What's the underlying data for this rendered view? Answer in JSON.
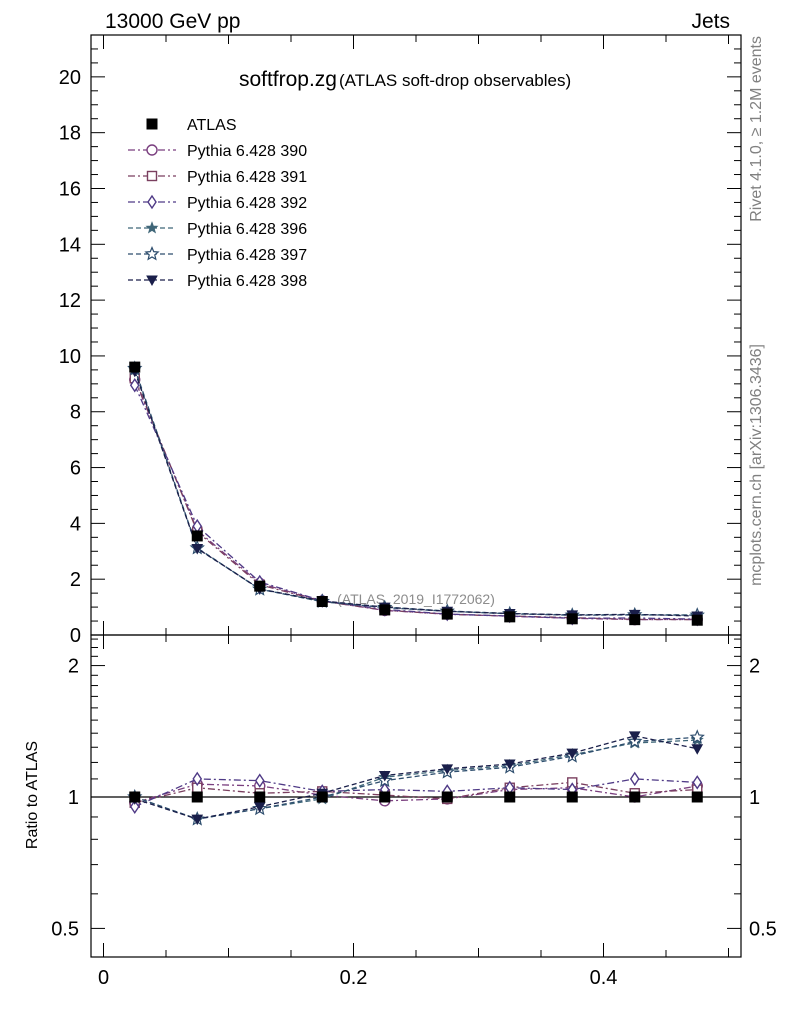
{
  "header": {
    "left": "13000 GeV pp",
    "right": "Jets"
  },
  "side_labels": {
    "top": "Rivet 4.1.0, ≥ 1.2M events",
    "bottom": "mcplots.cern.ch [arXiv:1306.3436]"
  },
  "title": {
    "main": "softfrop.zg",
    "sub": "(ATLAS soft-drop observables)"
  },
  "analysis_label": "(ATLAS_2019_I1772062)",
  "ratio_ylabel": "Ratio to ATLAS",
  "colors": {
    "atlas": "#000000",
    "p390": "#7a3f7f",
    "p391": "#7a3f5f",
    "p392": "#4f3a86",
    "p396": "#3f6678",
    "p397": "#2e4e6e",
    "p398": "#1a1f4a"
  },
  "chart_data": [
    {
      "type": "line",
      "panel": "main",
      "title": "softfrop.zg (ATLAS soft-drop observables)",
      "xlabel": "",
      "ylabel": "",
      "xlim": [
        -0.01,
        0.51
      ],
      "ylim": [
        0,
        21.5
      ],
      "x_ticks": [
        0,
        0.2,
        0.4
      ],
      "x_tick_labels": [
        "0",
        "0.2",
        "0.4"
      ],
      "y_ticks": [
        0,
        2,
        4,
        6,
        8,
        10,
        12,
        14,
        16,
        18,
        20
      ],
      "y_tick_labels": [
        "0",
        "2",
        "4",
        "6",
        "8",
        "10",
        "12",
        "14",
        "16",
        "18",
        "20"
      ],
      "x": [
        0.025,
        0.075,
        0.125,
        0.175,
        0.225,
        0.275,
        0.325,
        0.375,
        0.425,
        0.475
      ],
      "legend_position": "top-left",
      "series": [
        {
          "name": "ATLAS",
          "marker": "square-filled",
          "line": "none",
          "color": "#000000",
          "values": [
            9.6,
            3.55,
            1.75,
            1.2,
            0.9,
            0.75,
            0.65,
            0.58,
            0.55,
            0.53
          ]
        },
        {
          "name": "Pythia 6.428 390",
          "marker": "circle-open",
          "line": "dashdot",
          "color": "#7a3f7f",
          "values": [
            9.15,
            3.75,
            1.85,
            1.22,
            0.88,
            0.75,
            0.67,
            0.6,
            0.55,
            0.56
          ]
        },
        {
          "name": "Pythia 6.428 391",
          "marker": "square-open",
          "line": "dashdot",
          "color": "#7a3f5f",
          "values": [
            9.2,
            3.7,
            1.8,
            1.21,
            0.89,
            0.74,
            0.68,
            0.62,
            0.56,
            0.55
          ]
        },
        {
          "name": "Pythia 6.428 392",
          "marker": "diamond-open",
          "line": "dashdot",
          "color": "#4f3a86",
          "values": [
            8.95,
            3.9,
            1.9,
            1.23,
            0.92,
            0.75,
            0.68,
            0.6,
            0.61,
            0.57
          ]
        },
        {
          "name": "Pythia 6.428 396",
          "marker": "star-filled",
          "line": "dashed",
          "color": "#3f6678",
          "values": [
            9.5,
            3.1,
            1.65,
            1.19,
            1.0,
            0.86,
            0.77,
            0.72,
            0.73,
            0.72
          ]
        },
        {
          "name": "Pythia 6.428 397",
          "marker": "star-open",
          "line": "dashed",
          "color": "#2e4e6e",
          "values": [
            9.55,
            3.12,
            1.64,
            1.2,
            0.98,
            0.85,
            0.76,
            0.71,
            0.72,
            0.71
          ]
        },
        {
          "name": "Pythia 6.428 398",
          "marker": "triangle-down-filled",
          "line": "dashed",
          "color": "#1a1f4a",
          "values": [
            9.45,
            3.1,
            1.65,
            1.22,
            1.0,
            0.85,
            0.77,
            0.72,
            0.74,
            0.68
          ]
        }
      ]
    },
    {
      "type": "line",
      "panel": "ratio",
      "ylabel": "Ratio to ATLAS",
      "xlim": [
        -0.01,
        0.51
      ],
      "ylim": [
        0.43,
        2.35
      ],
      "y_scale": "log",
      "y_ticks": [
        0.5,
        1,
        2
      ],
      "y_tick_labels": [
        "0.5",
        "1",
        "2"
      ],
      "x_ticks": [
        0,
        0.2,
        0.4
      ],
      "x_tick_labels": [
        "0",
        "0.2",
        "0.4"
      ],
      "x": [
        0.025,
        0.075,
        0.125,
        0.175,
        0.225,
        0.275,
        0.325,
        0.375,
        0.425,
        0.475
      ],
      "reference_line": 1,
      "series": [
        {
          "name": "ATLAS",
          "marker": "square-filled",
          "color": "#000000",
          "values": [
            1.0,
            1.0,
            1.0,
            1.0,
            1.0,
            1.0,
            1.0,
            1.0,
            1.0,
            1.0
          ]
        },
        {
          "name": "Pythia 6.428 390",
          "marker": "circle-open",
          "line": "dashdot",
          "color": "#7a3f7f",
          "values": [
            0.97,
            1.07,
            1.06,
            1.01,
            0.98,
            0.99,
            1.04,
            1.05,
            1.0,
            1.06
          ]
        },
        {
          "name": "Pythia 6.428 391",
          "marker": "square-open",
          "line": "dashdot",
          "color": "#7a3f5f",
          "values": [
            0.97,
            1.05,
            1.02,
            1.03,
            1.01,
            0.99,
            1.05,
            1.08,
            1.02,
            1.04
          ]
        },
        {
          "name": "Pythia 6.428 392",
          "marker": "diamond-open",
          "line": "dashdot",
          "color": "#4f3a86",
          "values": [
            0.95,
            1.1,
            1.09,
            1.03,
            1.04,
            1.03,
            1.05,
            1.04,
            1.1,
            1.08
          ]
        },
        {
          "name": "Pythia 6.428 396",
          "marker": "star-filled",
          "line": "dashed",
          "color": "#3f6678",
          "values": [
            1.0,
            0.89,
            0.94,
            0.99,
            1.11,
            1.15,
            1.18,
            1.25,
            1.33,
            1.35
          ]
        },
        {
          "name": "Pythia 6.428 397",
          "marker": "star-open",
          "line": "dashed",
          "color": "#2e4e6e",
          "values": [
            1.0,
            0.89,
            0.94,
            1.0,
            1.09,
            1.14,
            1.17,
            1.24,
            1.34,
            1.37
          ]
        },
        {
          "name": "Pythia 6.428 398",
          "marker": "triangle-down-filled",
          "line": "dashed",
          "color": "#1a1f4a",
          "values": [
            0.99,
            0.89,
            0.95,
            1.02,
            1.12,
            1.16,
            1.19,
            1.26,
            1.38,
            1.29
          ]
        }
      ]
    }
  ]
}
